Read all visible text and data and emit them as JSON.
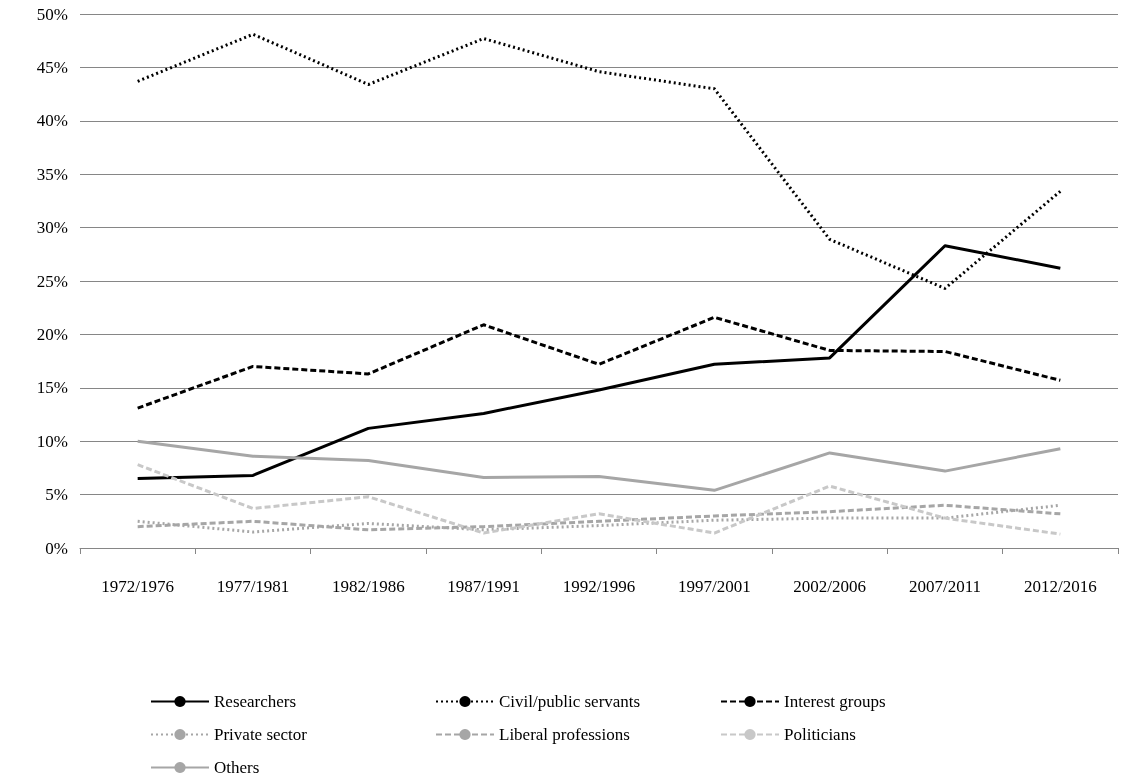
{
  "chart_data": {
    "type": "line",
    "categories": [
      "1972/1976",
      "1977/1981",
      "1982/1986",
      "1987/1991",
      "1992/1996",
      "1997/2001",
      "2002/2006",
      "2007/2011",
      "2012/2016"
    ],
    "series": [
      {
        "name": "Researchers",
        "color": "#000000",
        "line_style": "solid",
        "values": [
          6.5,
          6.8,
          11.2,
          12.6,
          14.8,
          17.2,
          17.8,
          28.3,
          26.2
        ]
      },
      {
        "name": "Civil/public servants",
        "color": "#000000",
        "line_style": "dotted",
        "values": [
          43.7,
          48.1,
          43.4,
          47.7,
          44.6,
          43.0,
          28.9,
          24.3,
          33.4
        ]
      },
      {
        "name": "Interest groups",
        "color": "#000000",
        "line_style": "dashed",
        "values": [
          13.1,
          17.0,
          16.3,
          20.9,
          17.2,
          21.6,
          18.5,
          18.4,
          15.7
        ]
      },
      {
        "name": "Private sector",
        "color": "#a6a6a6",
        "line_style": "dotted",
        "values": [
          2.5,
          1.5,
          2.3,
          1.7,
          2.1,
          2.6,
          2.8,
          2.8,
          4.0
        ]
      },
      {
        "name": "Liberal professions",
        "color": "#a6a6a6",
        "line_style": "dashed",
        "values": [
          2.0,
          2.5,
          1.7,
          2.0,
          2.5,
          3.0,
          3.4,
          4.0,
          3.2
        ]
      },
      {
        "name": "Politicians",
        "color": "#c8c8c8",
        "line_style": "dashed",
        "values": [
          7.8,
          3.7,
          4.8,
          1.4,
          3.2,
          1.4,
          5.8,
          2.8,
          1.3
        ]
      },
      {
        "name": "Others",
        "color": "#a6a6a6",
        "line_style": "solid",
        "values": [
          10.0,
          8.6,
          8.2,
          6.6,
          6.7,
          5.4,
          8.9,
          7.2,
          9.3
        ]
      }
    ],
    "ylim": [
      0,
      50
    ],
    "yticks": [
      {
        "value": 0,
        "label": "0%"
      },
      {
        "value": 5,
        "label": "5%"
      },
      {
        "value": 10,
        "label": "10%"
      },
      {
        "value": 15,
        "label": "15%"
      },
      {
        "value": 20,
        "label": "20%"
      },
      {
        "value": 25,
        "label": "25%"
      },
      {
        "value": 30,
        "label": "30%"
      },
      {
        "value": 35,
        "label": "35%"
      },
      {
        "value": 40,
        "label": "40%"
      },
      {
        "value": 45,
        "label": "45%"
      },
      {
        "value": 50,
        "label": "50%"
      }
    ],
    "grid": "y",
    "legend": "bottom",
    "marker": "none"
  }
}
